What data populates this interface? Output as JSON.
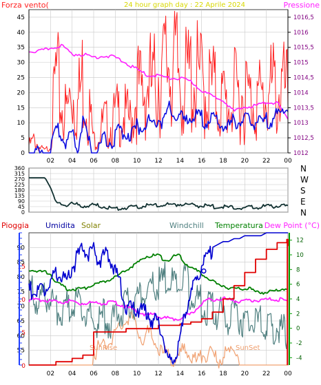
{
  "title": "24 hour graph day : 22 Aprile 2024",
  "colors": {
    "wind": "#ff2020",
    "pressure": "#ff20ff",
    "wind_avg": "#1010e0",
    "direction": "#103030",
    "rain": "#e00000",
    "humidity": "#0000d0",
    "solar": "#f0a070",
    "windchill": "#508080",
    "temperature": "#008000",
    "dewpoint": "#ff20ff",
    "title": "#e0e000",
    "axis_blue": "#2040ff",
    "axis_green": "#00a000",
    "grid": "#c8c8c8"
  },
  "labels": {
    "wind_title": "Forza vento(",
    "pressure_title": "Pressione",
    "rain": "Pioggia",
    "humidity": "Umidita",
    "solar": "Solar",
    "windchill": "Windchill",
    "temperature": "Temperatura",
    "dewpoint": "Dew Point (°C)",
    "sunrise": "SunRise",
    "sunset": "SunSet",
    "dir_n": "N",
    "dir_w": "W",
    "dir_s": "S",
    "dir_e": "E",
    "dir_n2": "N"
  },
  "chart_data": [
    {
      "type": "line",
      "panel": "wind-pressure",
      "title": "24 hour graph day : 22 Aprile 2024",
      "x_ticks": [
        "02",
        "04",
        "06",
        "08",
        "10",
        "12",
        "14",
        "16",
        "18",
        "20",
        "22",
        "00"
      ],
      "xlim": [
        0,
        24
      ],
      "left_axis": {
        "label": "Forza vento(",
        "ticks": [
          0,
          5,
          10,
          15,
          20,
          25,
          30,
          35,
          40,
          45
        ],
        "ylim": [
          0,
          47.5
        ]
      },
      "right_axis": {
        "label": "Pressione",
        "ticks": [
          "1012",
          "1012,5",
          "1013",
          "1013,5",
          "1014",
          "1014,5",
          "1015",
          "1015,5",
          "1016",
          "1016,5"
        ],
        "ylim": [
          1012,
          1016.75
        ]
      },
      "series": [
        {
          "name": "Forza vento(",
          "axis": "left",
          "x": [
            0,
            0.5,
            1,
            1.5,
            2,
            2.5,
            3,
            3.5,
            4,
            4.5,
            5,
            5.5,
            6,
            6.5,
            7,
            7.5,
            8,
            8.5,
            9,
            9.5,
            10,
            10.5,
            11,
            11.5,
            12,
            12.5,
            13,
            13.5,
            14,
            14.5,
            15,
            15.5,
            16,
            16.5,
            17,
            17.5,
            18,
            18.5,
            19,
            19.5,
            20,
            20.5,
            21,
            21.5,
            22,
            22.5,
            23,
            23.5,
            24
          ],
          "y": [
            3,
            5,
            2,
            1,
            3,
            30,
            18,
            15,
            25,
            18,
            30,
            20,
            5,
            8,
            12,
            10,
            14,
            16,
            14,
            12,
            25,
            22,
            28,
            24,
            32,
            30,
            40,
            33,
            30,
            26,
            30,
            28,
            27,
            24,
            25,
            20,
            20,
            18,
            22,
            22,
            24,
            20,
            22,
            20,
            22,
            24,
            24,
            24,
            22
          ]
        },
        {
          "name": "Pressione",
          "axis": "right",
          "x": [
            0,
            1,
            2,
            3,
            4,
            5,
            6,
            7,
            8,
            9,
            10,
            11,
            12,
            13,
            14,
            15,
            16,
            17,
            18,
            19,
            20,
            21,
            22,
            23,
            24
          ],
          "y": [
            1015.4,
            1015.4,
            1015.5,
            1015.6,
            1015.3,
            1015.3,
            1015.2,
            1015.25,
            1015.2,
            1015.0,
            1014.8,
            1014.6,
            1014.6,
            1014.5,
            1014.5,
            1014.4,
            1014.1,
            1013.9,
            1013.8,
            1013.4,
            1013.55,
            1013.6,
            1013.7,
            1013.7,
            1013.1
          ]
        },
        {
          "name": "",
          "axis": "left",
          "x": [
            0,
            0.5,
            1,
            1.5,
            2,
            2.5,
            3,
            3.5,
            4,
            4.5,
            5,
            5.5,
            6,
            6.5,
            7,
            7.5,
            8,
            8.5,
            9,
            9.5,
            10,
            10.5,
            11,
            11.5,
            12,
            12.5,
            13,
            13.5,
            14,
            14.5,
            15,
            15.5,
            16,
            16.5,
            17,
            17.5,
            18,
            18.5,
            19,
            19.5,
            20,
            20.5,
            21,
            21.5,
            22,
            22.5,
            23,
            23.5,
            24
          ],
          "y": [
            1,
            2,
            0,
            0,
            1,
            10,
            7,
            5,
            7,
            3,
            12,
            5,
            1,
            3,
            7,
            5,
            7,
            9,
            8,
            8,
            10,
            11,
            12,
            11,
            13,
            12,
            16,
            14,
            13,
            12,
            14,
            13,
            13,
            12,
            13,
            11,
            11,
            10,
            12,
            12,
            13,
            11,
            12,
            11,
            12,
            13,
            14,
            15,
            17
          ]
        }
      ]
    },
    {
      "type": "line",
      "panel": "wind-direction",
      "xlim": [
        0,
        24
      ],
      "ylim": [
        0,
        360
      ],
      "y_ticks": [
        0,
        45,
        90,
        135,
        180,
        225,
        270,
        315,
        360
      ],
      "series": [
        {
          "name": "",
          "x": [
            0,
            1,
            1.5,
            2,
            2.5,
            3,
            4,
            5,
            6,
            7,
            8,
            9,
            10,
            11,
            12,
            13,
            14,
            15,
            16,
            17,
            18,
            19,
            20,
            21,
            22,
            23,
            24
          ],
          "y": [
            280,
            280,
            280,
            200,
            90,
            70,
            75,
            60,
            65,
            55,
            35,
            45,
            55,
            60,
            65,
            70,
            75,
            70,
            60,
            55,
            50,
            45,
            45,
            50,
            55,
            60,
            55
          ]
        }
      ]
    },
    {
      "type": "line",
      "panel": "humidity-temperature",
      "x_ticks": [
        "02",
        "04",
        "06",
        "08",
        "10",
        "12",
        "14",
        "16",
        "18",
        "20",
        "22",
        "00"
      ],
      "xlim": [
        0,
        24
      ],
      "rain_axis": {
        "label": "Pioggia",
        "ticks": [
          0,
          5,
          10,
          15
        ],
        "ylim": [
          0,
          20
        ]
      },
      "humidity_axis": {
        "label": "Umidita",
        "ticks": [
          55,
          60,
          65,
          70,
          75,
          80,
          85,
          90
        ],
        "ylim": [
          50,
          95
        ]
      },
      "temperature_axis": {
        "label": "Dew Point (°C)",
        "ticks": [
          -4,
          -2,
          0,
          2,
          4,
          6,
          8,
          10,
          12
        ],
        "ylim": [
          -5,
          13
        ]
      },
      "series": [
        {
          "name": "Pioggia",
          "axis": "rain",
          "x": [
            0,
            1,
            2,
            2.5,
            3,
            4,
            5,
            6,
            7,
            8,
            9,
            10,
            11,
            12,
            13,
            14,
            15,
            16,
            17,
            18,
            19,
            20,
            21,
            22,
            23,
            23.9,
            24
          ],
          "y": [
            0,
            0,
            0,
            0.5,
            0.5,
            1,
            1.5,
            5,
            5,
            5,
            5.5,
            5.5,
            5.5,
            6,
            6,
            6.2,
            6.5,
            7,
            8,
            10,
            12,
            14,
            16,
            17.5,
            18.5,
            19,
            18
          ]
        },
        {
          "name": "Umidita",
          "axis": "humidity",
          "x": [
            0,
            0.5,
            1,
            1.5,
            2,
            2.5,
            3,
            3.5,
            4,
            4.5,
            5,
            5.5,
            6,
            6.5,
            7,
            7.5,
            8,
            8.5,
            9,
            9.5,
            10,
            10.5,
            11,
            11.5,
            12,
            12.5,
            13,
            13.5,
            14,
            14.5,
            15,
            15.5,
            16,
            16.5,
            17,
            17.5,
            18,
            18.5,
            19,
            19.5,
            20,
            20.5,
            21,
            21.5,
            22,
            22.5,
            23,
            23.5,
            24
          ],
          "y": [
            77,
            77,
            76,
            78,
            80,
            82,
            83,
            80,
            85,
            88,
            92,
            90,
            91,
            87,
            89,
            88,
            83,
            78,
            72,
            70,
            71,
            70,
            70,
            66,
            66,
            60,
            52,
            55,
            60,
            70,
            76,
            80,
            86,
            88,
            90,
            91,
            92,
            92,
            93,
            93,
            94,
            94,
            94,
            94,
            95,
            95,
            95,
            95,
            95
          ]
        },
        {
          "name": "Solar",
          "axis": "temperature",
          "x": [
            0,
            5.9,
            6,
            6.5,
            7,
            7.5,
            8,
            8.5,
            9,
            9.5,
            10,
            10.5,
            11,
            11.5,
            12,
            12.5,
            13,
            13.5,
            14,
            14.5,
            15,
            15.5,
            16,
            16.5,
            17,
            17.5,
            18,
            18.5,
            19,
            19.4,
            19.5,
            24
          ],
          "y": [
            -5,
            -5,
            -3,
            -2,
            -2,
            -1,
            0,
            1,
            2,
            2,
            1,
            -1,
            0,
            -1,
            -2,
            -3,
            -3,
            -4,
            -3,
            -2,
            -3,
            -4,
            -3,
            -3,
            -3,
            -4,
            -3,
            -3,
            -2,
            -3,
            -5,
            -5
          ]
        },
        {
          "name": "Windchill",
          "axis": "temperature",
          "x": [
            0,
            0.5,
            1,
            1.5,
            2,
            2.5,
            3,
            3.5,
            4,
            4.5,
            5,
            5.5,
            6,
            6.5,
            7,
            7.5,
            8,
            8.5,
            9,
            9.5,
            10,
            10.5,
            11,
            11.5,
            12,
            12.5,
            13,
            13.5,
            14,
            14.5,
            15,
            15.5,
            16,
            16.5,
            17,
            17.5,
            18,
            18.5,
            19,
            19.5,
            20,
            20.5,
            21,
            21.5,
            22,
            22.5,
            23,
            23.5,
            24
          ],
          "y": [
            6,
            6,
            5,
            5,
            6,
            4,
            3,
            4,
            4,
            5,
            3,
            3,
            2,
            2,
            3,
            2,
            3,
            4,
            4,
            5,
            5,
            6,
            6,
            7,
            7,
            8,
            8,
            7,
            7,
            8,
            6,
            5,
            5,
            4,
            4,
            3,
            3,
            3,
            4,
            3,
            2,
            2,
            2,
            2,
            1,
            1,
            2,
            1,
            1
          ]
        },
        {
          "name": "Temperatura",
          "axis": "temperature",
          "x": [
            0,
            0.5,
            1,
            1.5,
            2,
            2.5,
            3,
            3.5,
            4,
            4.5,
            5,
            5.5,
            6,
            6.5,
            7,
            7.5,
            8,
            8.5,
            9,
            9.5,
            10,
            10.5,
            11,
            11.5,
            12,
            12.5,
            13,
            13.5,
            14,
            14.5,
            15,
            15.5,
            16,
            16.5,
            17,
            17.5,
            18,
            18.5,
            19,
            19.5,
            20,
            20.5,
            21,
            21.5,
            22,
            22.5,
            23,
            23.5,
            24
          ],
          "y": [
            8,
            8,
            7.8,
            7.8,
            7.5,
            6.5,
            6,
            5.5,
            5.5,
            5.5,
            5.5,
            5.8,
            6,
            6.2,
            6.5,
            6.8,
            7,
            7.5,
            8,
            8.5,
            9,
            9.5,
            10,
            10,
            10,
            9.5,
            9.5,
            10,
            10,
            9,
            8.5,
            8,
            7.5,
            7,
            6.5,
            6,
            6,
            5.5,
            5.5,
            5.5,
            5.5,
            5.5,
            5,
            5,
            5,
            5.2,
            5.2,
            5.5,
            5.5
          ]
        },
        {
          "name": "Dew Point (°C)",
          "axis": "temperature",
          "x": [
            0,
            0.5,
            1,
            1.5,
            2,
            2.5,
            3,
            3.5,
            4,
            4.5,
            5,
            5.5,
            6,
            6.5,
            7,
            7.5,
            8,
            8.5,
            9,
            9.5,
            10,
            10.5,
            11,
            11.5,
            12,
            12.5,
            13,
            13.5,
            14,
            14.5,
            15,
            15.5,
            16,
            16.5,
            17,
            17.5,
            18,
            18.5,
            19,
            19.5,
            20,
            20.5,
            21,
            21.5,
            22,
            22.5,
            23,
            23.5,
            24
          ],
          "y": [
            4,
            4,
            4,
            4,
            3.8,
            3.8,
            3.8,
            3.8,
            3.8,
            3.6,
            3.6,
            3.6,
            3.6,
            3.6,
            3.6,
            3.6,
            3.6,
            3.4,
            3,
            2.8,
            2.5,
            2.2,
            2,
            2,
            1.8,
            1.6,
            1.4,
            1.4,
            1.6,
            1.8,
            2,
            2.8,
            3.5,
            4,
            4,
            4.2,
            4.2,
            4,
            4,
            3.8,
            3.8,
            3.9,
            4,
            4,
            4,
            4.1,
            4.1,
            4.0,
            3.8
          ]
        }
      ]
    }
  ]
}
